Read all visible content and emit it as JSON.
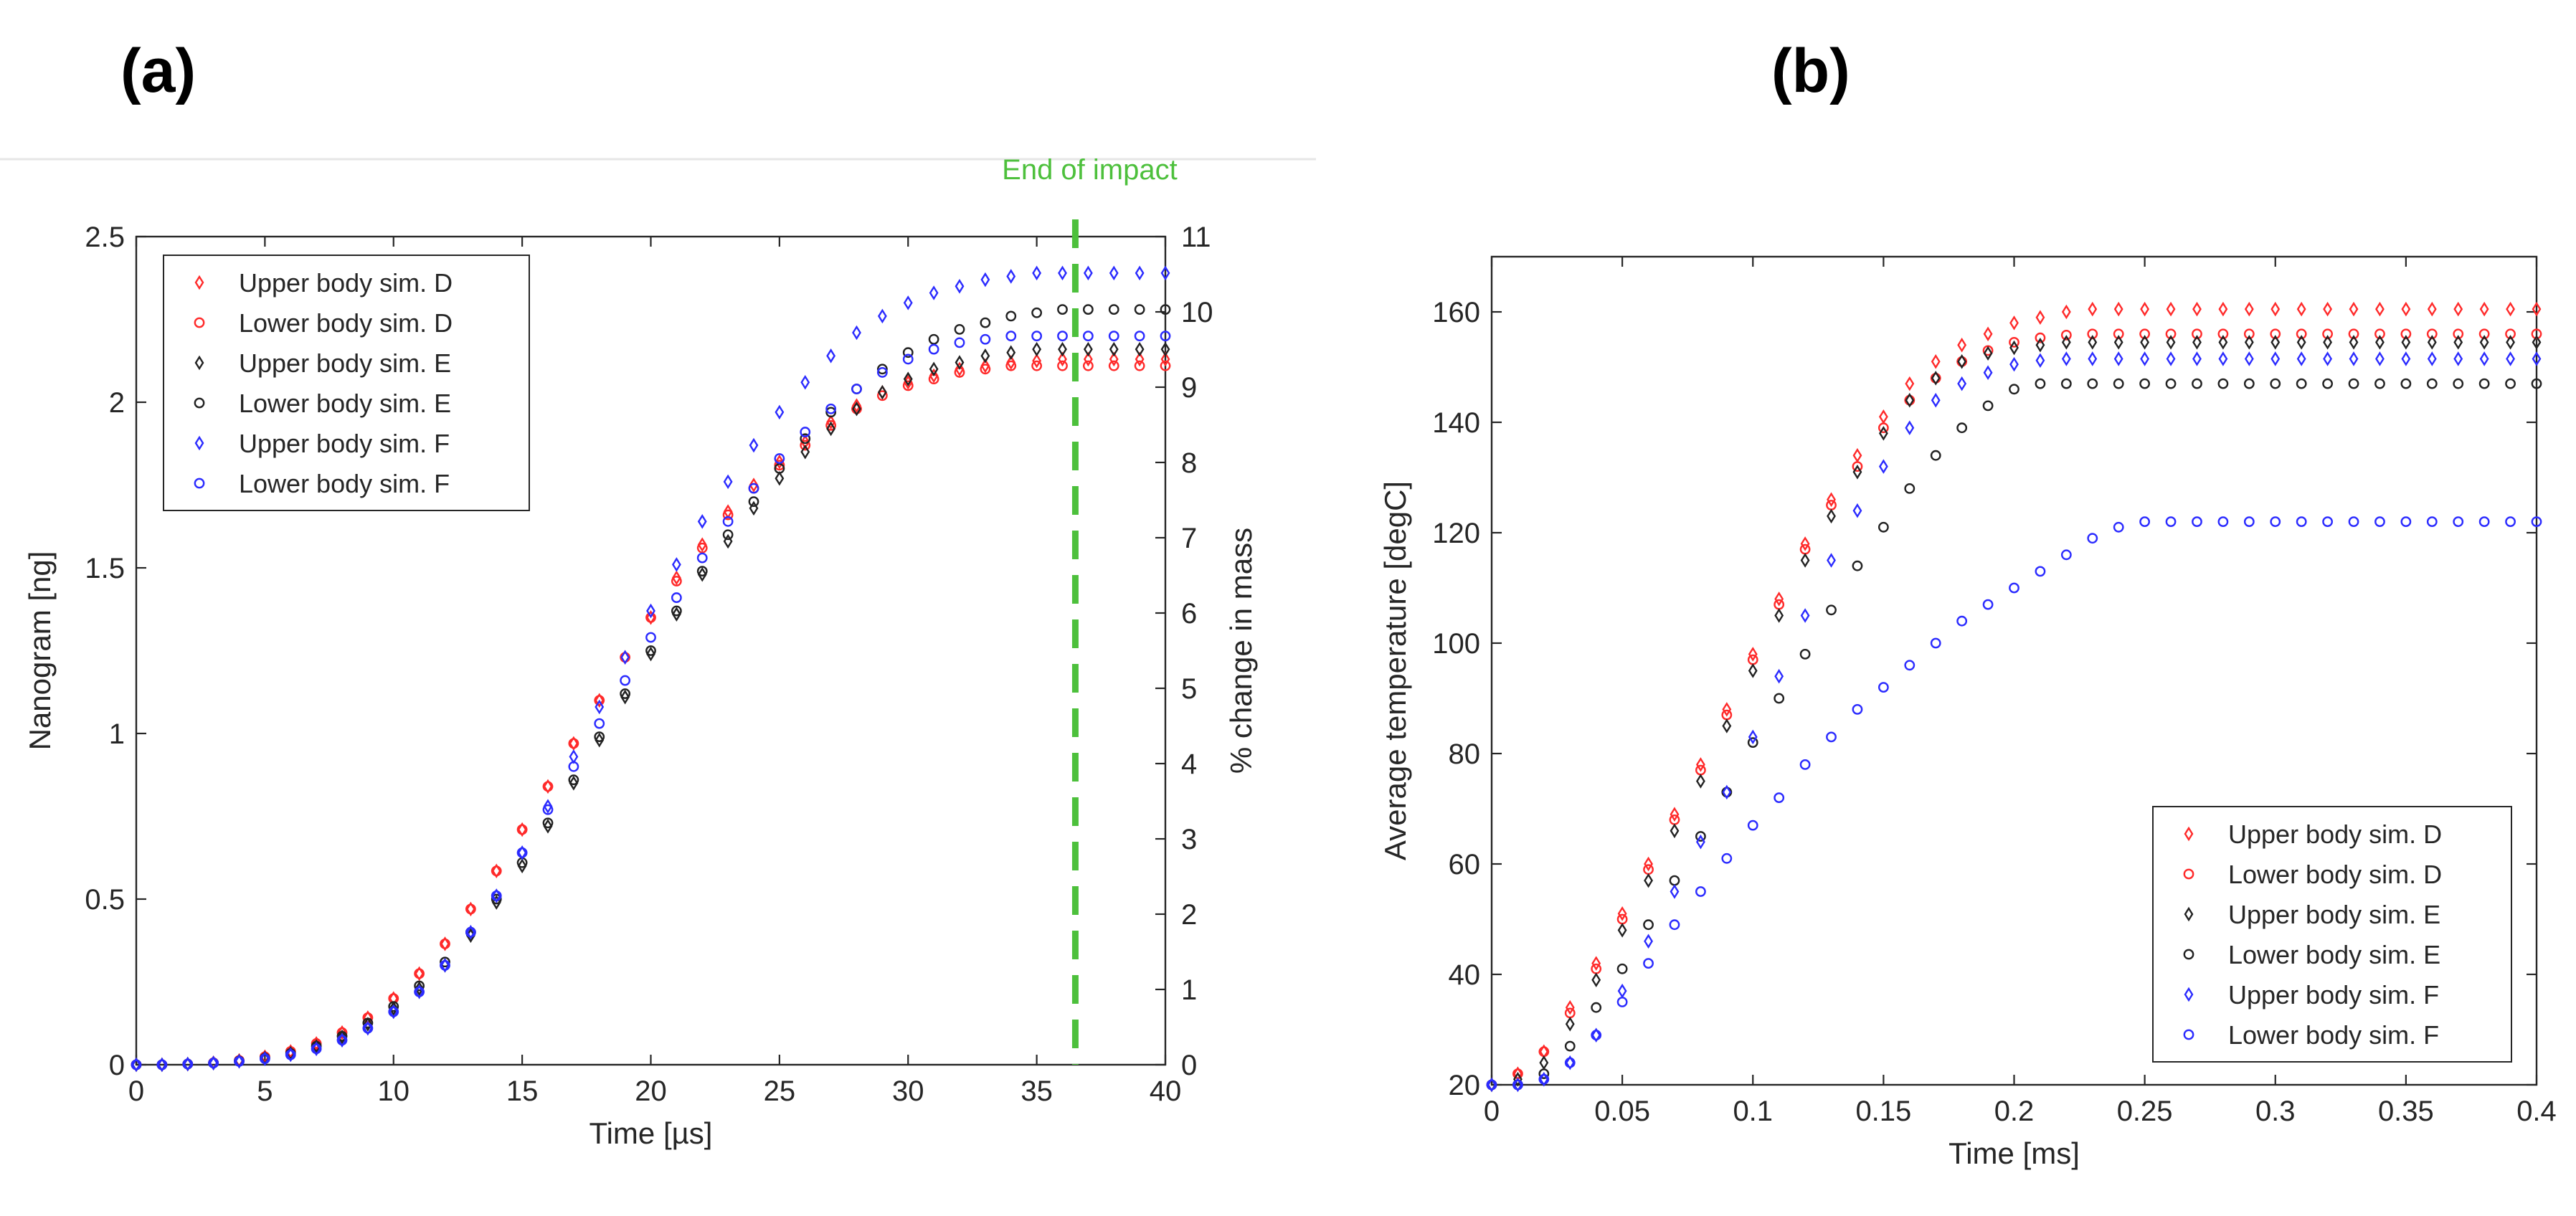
{
  "panels": {
    "a": {
      "label": "(a)"
    },
    "b": {
      "label": "(b)"
    }
  },
  "chart_data": [
    {
      "type": "scatter",
      "panel": "(a)",
      "xlabel": "Time [µs]",
      "ylabel": "Nanogram [ng]",
      "y2label": "% change in mass",
      "xlim": [
        0,
        40
      ],
      "ylim": [
        0,
        2.5
      ],
      "y2lim": [
        0,
        11
      ],
      "xticks": [
        0,
        5,
        10,
        15,
        20,
        25,
        30,
        35,
        40
      ],
      "yticks": [
        0,
        0.5,
        1,
        1.5,
        2,
        2.5
      ],
      "y2ticks": [
        0,
        1,
        2,
        3,
        4,
        5,
        6,
        7,
        8,
        9,
        10,
        11
      ],
      "grid": false,
      "legend_position": "top-left",
      "annotation": {
        "text": "End of impact",
        "x": 36.5
      },
      "x": [
        0,
        1,
        2,
        3,
        4,
        5,
        6,
        7,
        8,
        9,
        10,
        11,
        12,
        13,
        14,
        15,
        16,
        17,
        18,
        19,
        20,
        21,
        22,
        23,
        24,
        25,
        26,
        27,
        28,
        29,
        30,
        31,
        32,
        33,
        34,
        35,
        36,
        37,
        38,
        39,
        40
      ],
      "series": [
        {
          "name": "Upper body sim. D",
          "marker": "diamond",
          "color": "#ff2a2a",
          "values": [
            0,
            0,
            0.002,
            0.006,
            0.013,
            0.024,
            0.04,
            0.064,
            0.097,
            0.142,
            0.2,
            0.275,
            0.365,
            0.47,
            0.585,
            0.71,
            0.84,
            0.97,
            1.1,
            1.23,
            1.35,
            1.47,
            1.57,
            1.67,
            1.75,
            1.82,
            1.88,
            1.94,
            1.99,
            2.03,
            2.06,
            2.08,
            2.1,
            2.11,
            2.12,
            2.125,
            2.13,
            2.13,
            2.13,
            2.13,
            2.13
          ]
        },
        {
          "name": "Lower body sim. D",
          "marker": "circle",
          "color": "#ff2a2a",
          "values": [
            0,
            0,
            0.002,
            0.006,
            0.013,
            0.024,
            0.04,
            0.064,
            0.097,
            0.142,
            0.2,
            0.275,
            0.365,
            0.47,
            0.585,
            0.71,
            0.84,
            0.97,
            1.1,
            1.23,
            1.35,
            1.46,
            1.56,
            1.66,
            1.74,
            1.81,
            1.87,
            1.93,
            1.98,
            2.02,
            2.05,
            2.07,
            2.09,
            2.1,
            2.11,
            2.11,
            2.11,
            2.11,
            2.11,
            2.11,
            2.11
          ]
        },
        {
          "name": "Upper body sim. E",
          "marker": "diamond",
          "color": "#222222",
          "values": [
            0,
            0,
            0.002,
            0.005,
            0.011,
            0.02,
            0.034,
            0.055,
            0.084,
            0.122,
            0.17,
            0.23,
            0.3,
            0.39,
            0.49,
            0.6,
            0.72,
            0.85,
            0.98,
            1.11,
            1.24,
            1.36,
            1.48,
            1.58,
            1.68,
            1.77,
            1.85,
            1.92,
            1.98,
            2.03,
            2.07,
            2.1,
            2.12,
            2.14,
            2.15,
            2.16,
            2.16,
            2.16,
            2.16,
            2.16,
            2.16
          ]
        },
        {
          "name": "Lower body sim. E",
          "marker": "circle",
          "color": "#222222",
          "values": [
            0,
            0,
            0.002,
            0.005,
            0.011,
            0.02,
            0.034,
            0.056,
            0.086,
            0.126,
            0.176,
            0.238,
            0.31,
            0.4,
            0.5,
            0.61,
            0.73,
            0.86,
            0.99,
            1.12,
            1.25,
            1.37,
            1.49,
            1.6,
            1.7,
            1.8,
            1.89,
            1.97,
            2.04,
            2.1,
            2.15,
            2.19,
            2.22,
            2.24,
            2.26,
            2.27,
            2.28,
            2.28,
            2.28,
            2.28,
            2.28
          ]
        },
        {
          "name": "Upper body sim. F",
          "marker": "diamond",
          "color": "#2b2bff",
          "values": [
            0,
            0,
            0.002,
            0.005,
            0.01,
            0.018,
            0.03,
            0.048,
            0.074,
            0.11,
            0.16,
            0.22,
            0.3,
            0.4,
            0.51,
            0.64,
            0.78,
            0.93,
            1.08,
            1.23,
            1.37,
            1.51,
            1.64,
            1.76,
            1.87,
            1.97,
            2.06,
            2.14,
            2.21,
            2.26,
            2.3,
            2.33,
            2.35,
            2.37,
            2.38,
            2.39,
            2.39,
            2.39,
            2.39,
            2.39,
            2.39
          ]
        },
        {
          "name": "Lower body sim. F",
          "marker": "circle",
          "color": "#2b2bff",
          "values": [
            0,
            0,
            0.002,
            0.005,
            0.01,
            0.018,
            0.03,
            0.048,
            0.074,
            0.11,
            0.16,
            0.22,
            0.3,
            0.4,
            0.51,
            0.64,
            0.77,
            0.9,
            1.03,
            1.16,
            1.29,
            1.41,
            1.53,
            1.64,
            1.74,
            1.83,
            1.91,
            1.98,
            2.04,
            2.09,
            2.13,
            2.16,
            2.18,
            2.19,
            2.2,
            2.2,
            2.2,
            2.2,
            2.2,
            2.2,
            2.2
          ]
        }
      ]
    },
    {
      "type": "scatter",
      "panel": "(b)",
      "xlabel": "Time [ms]",
      "ylabel": "Average temperature [degC]",
      "xlim": [
        0,
        0.4
      ],
      "ylim": [
        20,
        170
      ],
      "xticks": [
        0,
        0.05,
        0.1,
        0.15,
        0.2,
        0.25,
        0.3,
        0.35,
        0.4
      ],
      "yticks": [
        20,
        40,
        60,
        80,
        100,
        120,
        140,
        160
      ],
      "grid": false,
      "legend_position": "bottom-right",
      "x": [
        0,
        0.01,
        0.02,
        0.03,
        0.04,
        0.05,
        0.06,
        0.07,
        0.08,
        0.09,
        0.1,
        0.11,
        0.12,
        0.13,
        0.14,
        0.15,
        0.16,
        0.17,
        0.18,
        0.19,
        0.2,
        0.21,
        0.22,
        0.23,
        0.24,
        0.25,
        0.26,
        0.27,
        0.28,
        0.29,
        0.3,
        0.31,
        0.32,
        0.33,
        0.34,
        0.35,
        0.36,
        0.37,
        0.38,
        0.39,
        0.4
      ],
      "series": [
        {
          "name": "Upper body sim. D",
          "marker": "diamond",
          "color": "#ff2a2a",
          "values": [
            20,
            22,
            26,
            34,
            42,
            51,
            60,
            69,
            78,
            88,
            98,
            108,
            118,
            126,
            134,
            141,
            147,
            151,
            154,
            156,
            158,
            159,
            160,
            160.5,
            160.5,
            160.5,
            160.5,
            160.5,
            160.5,
            160.5,
            160.5,
            160.5,
            160.5,
            160.5,
            160.5,
            160.5,
            160.5,
            160.5,
            160.5,
            160.5,
            160.5
          ]
        },
        {
          "name": "Lower body sim. D",
          "marker": "circle",
          "color": "#ff2a2a",
          "values": [
            20,
            22,
            26,
            33,
            41,
            50,
            59,
            68,
            77,
            87,
            97,
            107,
            117,
            125,
            132,
            139,
            144,
            148,
            151,
            153,
            154.5,
            155.3,
            155.8,
            156,
            156,
            156,
            156,
            156,
            156,
            156,
            156,
            156,
            156,
            156,
            156,
            156,
            156,
            156,
            156,
            156,
            156
          ]
        },
        {
          "name": "Upper body sim. E",
          "marker": "diamond",
          "color": "#222222",
          "values": [
            20,
            21,
            24,
            31,
            39,
            48,
            57,
            66,
            75,
            85,
            95,
            105,
            115,
            123,
            131,
            138,
            144,
            148,
            151,
            152.5,
            153.5,
            154,
            154.5,
            154.5,
            154.5,
            154.5,
            154.5,
            154.5,
            154.5,
            154.5,
            154.5,
            154.5,
            154.5,
            154.5,
            154.5,
            154.5,
            154.5,
            154.5,
            154.5,
            154.5,
            154.5
          ]
        },
        {
          "name": "Lower body sim. E",
          "marker": "circle",
          "color": "#222222",
          "values": [
            20,
            20,
            22,
            27,
            34,
            41,
            49,
            57,
            65,
            73,
            82,
            90,
            98,
            106,
            114,
            121,
            128,
            134,
            139,
            143,
            146,
            147,
            147,
            147,
            147,
            147,
            147,
            147,
            147,
            147,
            147,
            147,
            147,
            147,
            147,
            147,
            147,
            147,
            147,
            147,
            147
          ]
        },
        {
          "name": "Upper body sim. F",
          "marker": "diamond",
          "color": "#2b2bff",
          "values": [
            20,
            20,
            21,
            24,
            29,
            37,
            46,
            55,
            64,
            73,
            83,
            94,
            105,
            115,
            124,
            132,
            139,
            144,
            147,
            149,
            150.5,
            151.2,
            151.5,
            151.5,
            151.5,
            151.5,
            151.5,
            151.5,
            151.5,
            151.5,
            151.5,
            151.5,
            151.5,
            151.5,
            151.5,
            151.5,
            151.5,
            151.5,
            151.5,
            151.5,
            151.5
          ]
        },
        {
          "name": "Lower body sim. F",
          "marker": "circle",
          "color": "#2b2bff",
          "values": [
            20,
            20,
            21,
            24,
            29,
            35,
            42,
            49,
            55,
            61,
            67,
            72,
            78,
            83,
            88,
            92,
            96,
            100,
            104,
            107,
            110,
            113,
            116,
            119,
            121,
            122,
            122,
            122,
            122,
            122,
            122,
            122,
            122,
            122,
            122,
            122,
            122,
            122,
            122,
            122,
            122
          ]
        }
      ]
    }
  ]
}
